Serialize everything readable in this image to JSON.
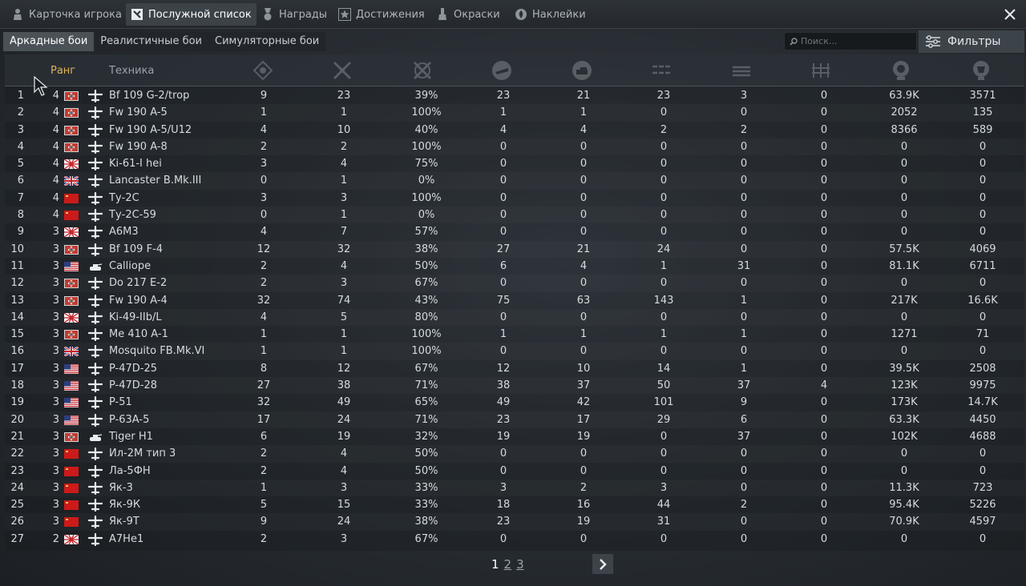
{
  "tabs": [
    {
      "label": "Карточка игрока",
      "icon": "player-card-icon",
      "active": false
    },
    {
      "label": "Послужной список",
      "icon": "service-record-icon",
      "active": true
    },
    {
      "label": "Награды",
      "icon": "medal-icon",
      "active": false
    },
    {
      "label": "Достижения",
      "icon": "star-icon",
      "active": false
    },
    {
      "label": "Окраски",
      "icon": "paint-icon",
      "active": false
    },
    {
      "label": "Наклейки",
      "icon": "decal-icon",
      "active": false
    }
  ],
  "modes": [
    {
      "label": "Аркадные бои",
      "active": true
    },
    {
      "label": "Реалистичные бои",
      "active": false
    },
    {
      "label": "Симуляторные бои",
      "active": false
    }
  ],
  "search": {
    "placeholder": "Поиск..."
  },
  "filters_label": "Фильтры",
  "columns": {
    "rank": "Ранг",
    "vehicle": "Техника",
    "stat_icons": [
      "battles-icon",
      "victories-icon",
      "win-rate-icon",
      "air-kills-icon",
      "ground-kills-icon",
      "destroyed-icon",
      "ships-icon",
      "bases-icon",
      "experience-icon",
      "lions-icon"
    ]
  },
  "colors": {
    "accent": "#e0b45a",
    "header_text": "#9aa3ab",
    "active_tab": "#3b4248",
    "row_text": "#d6dbe0"
  },
  "rows": [
    {
      "n": "1",
      "rank": "4",
      "country": "de",
      "type": "plane",
      "name": "Bf 109 G-2/trop",
      "v": [
        "9",
        "23",
        "39%",
        "23",
        "21",
        "23",
        "3",
        "0",
        "63.9K",
        "3571"
      ]
    },
    {
      "n": "2",
      "rank": "4",
      "country": "de",
      "type": "plane",
      "name": "Fw 190 A-5",
      "v": [
        "1",
        "1",
        "100%",
        "1",
        "1",
        "0",
        "0",
        "0",
        "2052",
        "135"
      ]
    },
    {
      "n": "3",
      "rank": "4",
      "country": "de",
      "type": "plane",
      "name": "Fw 190 A-5/U12",
      "v": [
        "4",
        "10",
        "40%",
        "4",
        "4",
        "2",
        "2",
        "0",
        "8366",
        "589"
      ]
    },
    {
      "n": "4",
      "rank": "4",
      "country": "de",
      "type": "plane",
      "name": "Fw 190 A-8",
      "v": [
        "2",
        "2",
        "100%",
        "0",
        "0",
        "0",
        "0",
        "0",
        "0",
        "0"
      ]
    },
    {
      "n": "5",
      "rank": "4",
      "country": "jp",
      "type": "plane",
      "name": "Ki-61-I hei",
      "v": [
        "3",
        "4",
        "75%",
        "0",
        "0",
        "0",
        "0",
        "0",
        "0",
        "0"
      ]
    },
    {
      "n": "6",
      "rank": "4",
      "country": "uk",
      "type": "plane",
      "name": "Lancaster B.Mk.III",
      "v": [
        "0",
        "1",
        "0%",
        "0",
        "0",
        "0",
        "0",
        "0",
        "0",
        "0"
      ]
    },
    {
      "n": "7",
      "rank": "4",
      "country": "su",
      "type": "plane",
      "name": "Ту-2С",
      "v": [
        "3",
        "3",
        "100%",
        "0",
        "0",
        "0",
        "0",
        "0",
        "0",
        "0"
      ]
    },
    {
      "n": "8",
      "rank": "4",
      "country": "su",
      "type": "plane",
      "name": "Ту-2С-59",
      "v": [
        "0",
        "1",
        "0%",
        "0",
        "0",
        "0",
        "0",
        "0",
        "0",
        "0"
      ]
    },
    {
      "n": "9",
      "rank": "3",
      "country": "jp",
      "type": "plane",
      "name": "A6M3",
      "v": [
        "4",
        "7",
        "57%",
        "0",
        "0",
        "0",
        "0",
        "0",
        "0",
        "0"
      ]
    },
    {
      "n": "10",
      "rank": "3",
      "country": "de",
      "type": "plane",
      "name": "Bf 109 F-4",
      "v": [
        "12",
        "32",
        "38%",
        "27",
        "21",
        "24",
        "0",
        "0",
        "57.5K",
        "4069"
      ]
    },
    {
      "n": "11",
      "rank": "3",
      "country": "us",
      "type": "tank",
      "name": "Calliope",
      "v": [
        "2",
        "4",
        "50%",
        "6",
        "4",
        "1",
        "31",
        "0",
        "81.1K",
        "6711"
      ]
    },
    {
      "n": "12",
      "rank": "3",
      "country": "de",
      "type": "plane",
      "name": "Do 217 E-2",
      "v": [
        "2",
        "3",
        "67%",
        "0",
        "0",
        "0",
        "0",
        "0",
        "0",
        "0"
      ]
    },
    {
      "n": "13",
      "rank": "3",
      "country": "de",
      "type": "plane",
      "name": "Fw 190 A-4",
      "v": [
        "32",
        "74",
        "43%",
        "75",
        "63",
        "143",
        "1",
        "0",
        "217K",
        "16.6K"
      ]
    },
    {
      "n": "14",
      "rank": "3",
      "country": "jp",
      "type": "plane",
      "name": "Ki-49-IIb/L",
      "v": [
        "4",
        "5",
        "80%",
        "0",
        "0",
        "0",
        "0",
        "0",
        "0",
        "0"
      ]
    },
    {
      "n": "15",
      "rank": "3",
      "country": "de",
      "type": "plane",
      "name": "Me 410 A-1",
      "v": [
        "1",
        "1",
        "100%",
        "1",
        "1",
        "1",
        "1",
        "0",
        "1271",
        "71"
      ]
    },
    {
      "n": "16",
      "rank": "3",
      "country": "uk",
      "type": "plane",
      "name": "Mosquito FB.Mk.VI",
      "v": [
        "1",
        "1",
        "100%",
        "0",
        "0",
        "0",
        "0",
        "0",
        "0",
        "0"
      ]
    },
    {
      "n": "17",
      "rank": "3",
      "country": "us",
      "type": "plane",
      "name": "P-47D-25",
      "v": [
        "8",
        "12",
        "67%",
        "12",
        "10",
        "14",
        "1",
        "0",
        "39.5K",
        "2508"
      ]
    },
    {
      "n": "18",
      "rank": "3",
      "country": "us",
      "type": "plane",
      "name": "P-47D-28",
      "v": [
        "27",
        "38",
        "71%",
        "38",
        "37",
        "50",
        "37",
        "4",
        "123K",
        "9975"
      ]
    },
    {
      "n": "19",
      "rank": "3",
      "country": "us",
      "type": "plane",
      "name": "P-51",
      "v": [
        "32",
        "49",
        "65%",
        "49",
        "42",
        "101",
        "9",
        "0",
        "173K",
        "14.7K"
      ]
    },
    {
      "n": "20",
      "rank": "3",
      "country": "us",
      "type": "plane",
      "name": "P-63A-5",
      "v": [
        "17",
        "24",
        "71%",
        "23",
        "17",
        "29",
        "6",
        "0",
        "63.3K",
        "4450"
      ]
    },
    {
      "n": "21",
      "rank": "3",
      "country": "de",
      "type": "tank",
      "name": "Tiger H1",
      "v": [
        "6",
        "19",
        "32%",
        "19",
        "19",
        "0",
        "37",
        "0",
        "102K",
        "4688"
      ]
    },
    {
      "n": "22",
      "rank": "3",
      "country": "su",
      "type": "plane",
      "name": "Ил-2М тип 3",
      "v": [
        "2",
        "4",
        "50%",
        "0",
        "0",
        "0",
        "0",
        "0",
        "0",
        "0"
      ]
    },
    {
      "n": "23",
      "rank": "3",
      "country": "su",
      "type": "plane",
      "name": "Ла-5ФН",
      "v": [
        "2",
        "4",
        "50%",
        "0",
        "0",
        "0",
        "0",
        "0",
        "0",
        "0"
      ]
    },
    {
      "n": "24",
      "rank": "3",
      "country": "su",
      "type": "plane",
      "name": "Як-3",
      "v": [
        "1",
        "3",
        "33%",
        "3",
        "2",
        "3",
        "0",
        "0",
        "11.3K",
        "723"
      ]
    },
    {
      "n": "25",
      "rank": "3",
      "country": "su",
      "type": "plane",
      "name": "Як-9К",
      "v": [
        "5",
        "15",
        "33%",
        "18",
        "16",
        "44",
        "2",
        "0",
        "95.4K",
        "5226"
      ]
    },
    {
      "n": "26",
      "rank": "3",
      "country": "su",
      "type": "plane",
      "name": "Як-9Т",
      "v": [
        "9",
        "24",
        "38%",
        "23",
        "19",
        "31",
        "0",
        "0",
        "70.9K",
        "4597"
      ]
    },
    {
      "n": "27",
      "rank": "2",
      "country": "jp",
      "type": "plane",
      "name": "A7He1",
      "v": [
        "2",
        "3",
        "67%",
        "0",
        "0",
        "0",
        "0",
        "0",
        "0",
        "0"
      ]
    }
  ],
  "pagination": {
    "pages": [
      "1",
      "2",
      "3"
    ],
    "current": "1"
  }
}
